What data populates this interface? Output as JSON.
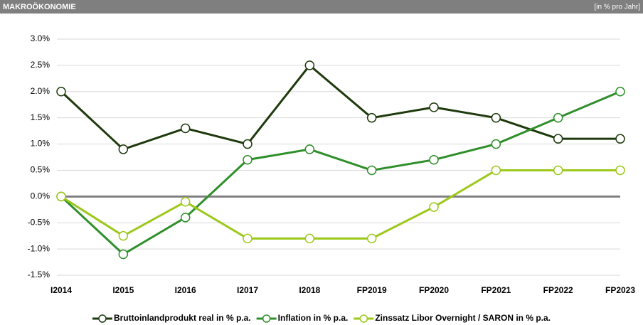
{
  "chart_data": {
    "type": "line",
    "title": "MAKROÖKONOMIE",
    "subtitle": "[in % pro Jahr]",
    "categories": [
      "I2014",
      "I2015",
      "I2016",
      "I2017",
      "I2018",
      "FP2019",
      "FP2020",
      "FP2021",
      "FP2022",
      "FP2023"
    ],
    "series": [
      {
        "name": "Bruttoinlandprodukt real in % p.a.",
        "color": "#1e3a0c",
        "values": [
          2.0,
          0.9,
          1.3,
          1.0,
          2.5,
          1.5,
          1.7,
          1.5,
          1.1,
          1.1
        ]
      },
      {
        "name": "Inflation in % p.a.",
        "color": "#2f8f2a",
        "values": [
          0.0,
          -1.1,
          -0.4,
          0.7,
          0.9,
          0.5,
          0.7,
          1.0,
          1.5,
          2.0
        ]
      },
      {
        "name": "Zinssatz Libor Overnight / SARON in % p.a.",
        "color": "#9cc81a",
        "values": [
          0.0,
          -0.75,
          -0.1,
          -0.8,
          -0.8,
          -0.8,
          -0.2,
          0.5,
          0.5,
          0.5
        ]
      }
    ],
    "ylim": [
      -1.5,
      3.0
    ],
    "yticks": [
      {
        "value": 3.0,
        "label": "3.0%"
      },
      {
        "value": 2.5,
        "label": "2.5%"
      },
      {
        "value": 2.0,
        "label": "2.0%"
      },
      {
        "value": 1.5,
        "label": "1.5%"
      },
      {
        "value": 1.0,
        "label": "1.0%"
      },
      {
        "value": 0.5,
        "label": "0.5%"
      },
      {
        "value": 0.0,
        "label": "0.0%"
      },
      {
        "value": -0.5,
        "label": "-0.5%"
      },
      {
        "value": -1.0,
        "label": "-1.0%"
      },
      {
        "value": -1.5,
        "label": "-1.5%"
      }
    ],
    "grid": true
  }
}
